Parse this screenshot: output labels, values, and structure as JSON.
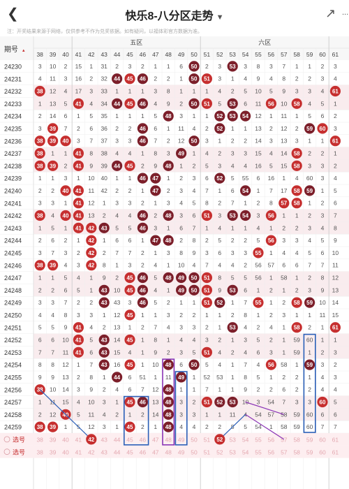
{
  "header": {
    "back_icon": "chevron-left-icon",
    "title": "快乐8-八分区走势",
    "share_icon": "share-icon",
    "more_label": "..."
  },
  "notice": "注：开奖结果来源于网络，仅供参考不作为兑奖依据。如有疑问，以福体彩官方数据为准。",
  "table": {
    "period_header": "期号",
    "zones": [
      {
        "label": "五区",
        "start": 41,
        "end": 50
      },
      {
        "label": "六区",
        "start": 51,
        "end": 60
      }
    ],
    "columns": [
      38,
      39,
      40,
      41,
      42,
      43,
      44,
      45,
      46,
      47,
      48,
      49,
      50,
      51,
      52,
      53,
      54,
      55,
      56,
      57,
      58,
      59,
      60,
      61
    ],
    "rows": [
      {
        "period": "24230",
        "vals": [
          3,
          10,
          2,
          15,
          1,
          31,
          2,
          3,
          2,
          1,
          1,
          6,
          50,
          2,
          3,
          53,
          3,
          8,
          3,
          7,
          1,
          1,
          2,
          3
        ],
        "hits": [
          50,
          53
        ]
      },
      {
        "period": "24231",
        "vals": [
          4,
          11,
          3,
          16,
          2,
          32,
          44,
          45,
          46,
          2,
          2,
          1,
          50,
          51,
          3,
          1,
          4,
          9,
          4,
          8,
          2,
          2,
          3,
          4
        ],
        "hits": [
          44,
          45,
          46,
          50,
          51
        ]
      },
      {
        "period": "24232",
        "vals": [
          38,
          12,
          4,
          17,
          3,
          33,
          1,
          1,
          1,
          3,
          8,
          1,
          1,
          1,
          4,
          2,
          5,
          10,
          5,
          9,
          3,
          3,
          4,
          61
        ],
        "hits": [
          38,
          61
        ]
      },
      {
        "period": "24233",
        "vals": [
          1,
          13,
          5,
          41,
          4,
          34,
          44,
          45,
          46,
          4,
          9,
          2,
          50,
          51,
          5,
          53,
          6,
          11,
          56,
          10,
          58,
          4,
          5,
          1
        ],
        "hits": [
          41,
          44,
          45,
          46,
          50,
          51,
          53,
          56,
          58
        ]
      },
      {
        "period": "24234",
        "vals": [
          2,
          14,
          6,
          1,
          5,
          35,
          1,
          1,
          1,
          5,
          48,
          3,
          1,
          1,
          52,
          53,
          54,
          12,
          1,
          11,
          1,
          5,
          6,
          2
        ],
        "hits": [
          48,
          52,
          53,
          54
        ]
      },
      {
        "period": "24235",
        "vals": [
          3,
          39,
          7,
          2,
          6,
          36,
          2,
          2,
          46,
          6,
          1,
          11,
          4,
          2,
          52,
          1,
          1,
          13,
          2,
          12,
          2,
          59,
          60,
          3
        ],
        "hits": [
          39,
          46,
          52,
          59,
          60
        ]
      },
      {
        "period": "24236",
        "vals": [
          38,
          39,
          40,
          3,
          7,
          37,
          3,
          3,
          46,
          7,
          2,
          12,
          50,
          3,
          1,
          2,
          2,
          14,
          3,
          13,
          3,
          1,
          1,
          61
        ],
        "hits": [
          38,
          39,
          40,
          46,
          50,
          61
        ]
      },
      {
        "period": "24237",
        "vals": [
          38,
          1,
          1,
          41,
          8,
          38,
          4,
          4,
          1,
          8,
          3,
          49,
          1,
          4,
          2,
          3,
          3,
          15,
          4,
          14,
          58,
          2,
          2,
          1
        ],
        "hits": [
          38,
          41,
          49,
          58
        ]
      },
      {
        "period": "24238",
        "vals": [
          38,
          39,
          2,
          41,
          9,
          39,
          44,
          45,
          2,
          9,
          48,
          1,
          2,
          5,
          3,
          4,
          4,
          16,
          5,
          15,
          58,
          3,
          3,
          2
        ],
        "hits": [
          38,
          39,
          41,
          44,
          45,
          48,
          58
        ]
      },
      {
        "period": "24239",
        "vals": [
          1,
          1,
          3,
          1,
          10,
          40,
          1,
          1,
          46,
          47,
          1,
          2,
          3,
          6,
          52,
          5,
          55,
          6,
          16,
          1,
          4,
          60,
          3,
          4
        ],
        "hits": [
          46,
          47,
          52,
          55,
          60
        ]
      },
      {
        "period": "24240",
        "vals": [
          2,
          2,
          40,
          41,
          11,
          42,
          2,
          2,
          1,
          47,
          2,
          3,
          4,
          7,
          1,
          6,
          54,
          1,
          7,
          17,
          58,
          59,
          1,
          5
        ],
        "hits": [
          40,
          41,
          42,
          47,
          54,
          58,
          59
        ]
      },
      {
        "period": "24241",
        "vals": [
          3,
          3,
          1,
          41,
          12,
          1,
          3,
          3,
          2,
          1,
          3,
          4,
          5,
          8,
          2,
          7,
          1,
          2,
          8,
          57,
          58,
          1,
          2,
          6
        ],
        "hits": [
          41,
          57,
          58
        ]
      },
      {
        "period": "24242",
        "vals": [
          38,
          4,
          40,
          41,
          13,
          2,
          4,
          4,
          46,
          2,
          48,
          3,
          6,
          51,
          3,
          53,
          54,
          3,
          56,
          1,
          1,
          2,
          3,
          7
        ],
        "hits": [
          38,
          40,
          41,
          46,
          48,
          51,
          53,
          54,
          56
        ]
      },
      {
        "period": "24243",
        "vals": [
          1,
          5,
          1,
          41,
          42,
          43,
          5,
          5,
          46,
          3,
          1,
          6,
          7,
          1,
          4,
          1,
          1,
          4,
          1,
          2,
          2,
          3,
          4,
          8
        ],
        "hits": [
          41,
          42,
          43,
          46
        ]
      },
      {
        "period": "24244",
        "vals": [
          2,
          6,
          2,
          1,
          42,
          1,
          6,
          6,
          1,
          47,
          48,
          2,
          8,
          2,
          5,
          2,
          2,
          5,
          56,
          3,
          3,
          4,
          5,
          9
        ],
        "hits": [
          42,
          47,
          48,
          56
        ]
      },
      {
        "period": "24245",
        "vals": [
          3,
          7,
          3,
          2,
          42,
          2,
          7,
          7,
          2,
          1,
          3,
          8,
          9,
          3,
          6,
          3,
          3,
          55,
          1,
          4,
          4,
          5,
          6,
          10
        ],
        "hits": [
          42,
          55
        ]
      },
      {
        "period": "24246",
        "vals": [
          38,
          39,
          4,
          3,
          42,
          8,
          1,
          3,
          2,
          4,
          1,
          10,
          4,
          7,
          4,
          4,
          2,
          56,
          57,
          6,
          6,
          7,
          7,
          11
        ],
        "hits": [
          38,
          39,
          42,
          56,
          57
        ]
      },
      {
        "period": "24247",
        "vals": [
          1,
          1,
          5,
          4,
          1,
          9,
          2,
          45,
          46,
          5,
          48,
          49,
          50,
          51,
          8,
          5,
          5,
          56,
          1,
          58,
          1,
          2,
          8,
          12
        ],
        "hits": [
          45,
          46,
          48,
          49,
          50,
          51,
          56,
          58
        ]
      },
      {
        "period": "24248",
        "vals": [
          2,
          2,
          6,
          5,
          1,
          43,
          10,
          45,
          46,
          4,
          1,
          49,
          50,
          51,
          9,
          53,
          6,
          1,
          2,
          1,
          2,
          3,
          9,
          13
        ],
        "hits": [
          43,
          45,
          46,
          49,
          50,
          51,
          53
        ]
      },
      {
        "period": "24249",
        "vals": [
          3,
          3,
          7,
          2,
          2,
          43,
          43,
          3,
          46,
          5,
          2,
          1,
          1,
          51,
          52,
          1,
          7,
          55,
          1,
          2,
          58,
          59,
          10,
          14
        ],
        "hits": [
          43,
          46,
          51,
          52,
          55,
          58,
          59
        ]
      },
      {
        "period": "24250",
        "vals": [
          4,
          4,
          8,
          3,
          3,
          1,
          12,
          45,
          1,
          1,
          3,
          2,
          2,
          1,
          1,
          2,
          8,
          1,
          2,
          3,
          1,
          1,
          11,
          15
        ],
        "hits": [
          45
        ]
      },
      {
        "period": "24251",
        "vals": [
          5,
          5,
          9,
          41,
          4,
          2,
          13,
          1,
          2,
          7,
          4,
          3,
          3,
          2,
          1,
          53,
          4,
          2,
          4,
          1,
          58,
          2,
          1,
          61
        ],
        "hits": [
          41,
          53,
          58,
          61
        ]
      },
      {
        "period": "24252",
        "vals": [
          6,
          6,
          10,
          41,
          5,
          43,
          14,
          45,
          1,
          8,
          1,
          4,
          4,
          3,
          2,
          1,
          3,
          5,
          2,
          1,
          59,
          60,
          1,
          1
        ],
        "hits": [
          41,
          43,
          45,
          59,
          60
        ]
      },
      {
        "period": "24253",
        "vals": [
          7,
          7,
          11,
          41,
          6,
          43,
          15,
          4,
          1,
          9,
          2,
          3,
          5,
          51,
          4,
          2,
          4,
          6,
          3,
          1,
          59,
          1,
          2,
          3
        ],
        "hits": [
          41,
          43,
          51,
          59
        ]
      },
      {
        "period": "24254",
        "vals": [
          8,
          8,
          12,
          1,
          7,
          43,
          16,
          45,
          1,
          10,
          48,
          6,
          50,
          5,
          4,
          1,
          7,
          4,
          56,
          58,
          1,
          59,
          3,
          2
        ],
        "hits": [
          43,
          45,
          48,
          50,
          56,
          58,
          59
        ]
      },
      {
        "period": "24255",
        "vals": [
          9,
          9,
          13,
          2,
          8,
          1,
          44,
          6,
          51,
          1,
          11,
          49,
          1,
          52,
          53,
          1,
          8,
          5,
          1,
          2,
          2,
          1,
          4,
          3
        ],
        "hits": [
          44,
          49,
          51,
          52,
          53
        ]
      },
      {
        "period": "24256",
        "vals": [
          38,
          10,
          14,
          3,
          9,
          2,
          4,
          6,
          7,
          12,
          48,
          1,
          1,
          7,
          1,
          1,
          9,
          2,
          2,
          6,
          2,
          2,
          4,
          4
        ],
        "hits": [
          38,
          48
        ]
      },
      {
        "period": "24257",
        "vals": [
          1,
          11,
          15,
          4,
          10,
          3,
          1,
          45,
          46,
          13,
          48,
          3,
          2,
          51,
          52,
          53,
          10,
          3,
          54,
          7,
          3,
          3,
          60,
          5
        ],
        "hits": [
          45,
          46,
          48,
          51,
          52,
          53,
          54,
          60
        ]
      },
      {
        "period": "24258",
        "vals": [
          2,
          12,
          40,
          5,
          11,
          4,
          2,
          1,
          2,
          14,
          48,
          3,
          3,
          1,
          1,
          11,
          4,
          54,
          57,
          58,
          59,
          60,
          6,
          6
        ],
        "hits": [
          40,
          48,
          54,
          57,
          58,
          59,
          60
        ]
      },
      {
        "period": "24259",
        "vals": [
          38,
          39,
          1,
          5,
          12,
          3,
          1,
          45,
          2,
          1,
          48,
          4,
          4,
          2,
          2,
          5,
          5,
          54,
          1,
          58,
          59,
          60,
          7,
          7
        ],
        "hits": [
          38,
          39,
          45,
          48,
          54,
          58,
          59,
          60
        ]
      }
    ],
    "pick_rows": [
      {
        "label": "选号",
        "icon": "circle-icon"
      },
      {
        "label": "选号",
        "icon": "circle-icon"
      }
    ]
  },
  "colors": {
    "hit": "#c62f2f",
    "hit_dark": "#7c1f2a",
    "box": "#2b5fb8",
    "purple_box": "#8a34b5",
    "stripe": "#f9ecee",
    "pick_bg": "#fdeef0"
  }
}
